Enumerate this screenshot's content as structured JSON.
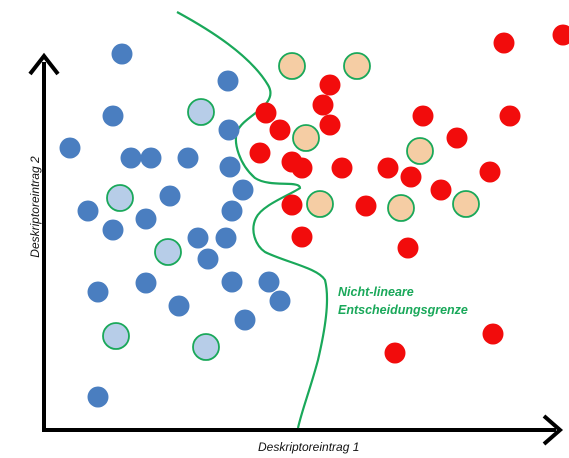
{
  "axes": {
    "x_label": "Deskriptoreintrag 1",
    "y_label": "Deskriptoreintrag 2"
  },
  "boundary": {
    "label_line1": "Nicht-lineare",
    "label_line2": "Entscheidungsgrenze"
  },
  "colors": {
    "class_a": "#4a7ec0",
    "class_a_light": "#b7cde8",
    "class_b": "#f20c0c",
    "class_b_light": "#f5cda4",
    "boundary": "#1aa85a",
    "axis": "#000000"
  }
}
